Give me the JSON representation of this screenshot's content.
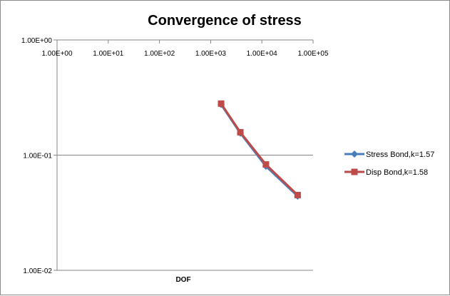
{
  "chart_data": {
    "type": "line",
    "title": "Convergence of stress",
    "xlabel": "DOF",
    "ylabel": "",
    "x_scale": "log",
    "y_scale": "log",
    "xlim": [
      1,
      100000
    ],
    "ylim": [
      0.01,
      1
    ],
    "x_ticks": [
      "1.00E+00",
      "1.00E+01",
      "1.00E+02",
      "1.00E+03",
      "1.00E+04",
      "1.00E+05"
    ],
    "y_ticks": [
      "1.00E+00",
      "1.00E-01",
      "1.00E-02"
    ],
    "x_tick_values": [
      1,
      10,
      100,
      1000,
      10000,
      100000
    ],
    "y_tick_values": [
      1,
      0.1,
      0.01
    ],
    "x_axis_position": "top",
    "grid": "horizontal major",
    "legend_position": "right",
    "series": [
      {
        "name": "Stress Bond,k=1.57",
        "color": "#4a7ebb",
        "marker": "diamond",
        "x": [
          1600,
          3800,
          12000,
          50000
        ],
        "y": [
          0.275,
          0.155,
          0.08,
          0.044
        ]
      },
      {
        "name": "Disp Bond,k=1.58",
        "color": "#be4b48",
        "marker": "square",
        "x": [
          1600,
          3800,
          12000,
          50000
        ],
        "y": [
          0.28,
          0.158,
          0.083,
          0.045
        ]
      }
    ]
  }
}
